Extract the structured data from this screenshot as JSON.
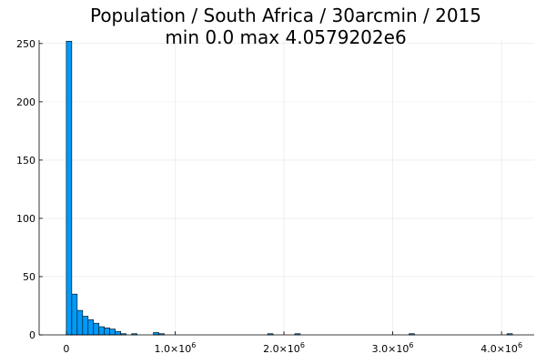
{
  "chart_data": {
    "type": "bar",
    "title": "Population / South Africa / 30arcmin / 2015",
    "subtitle": "min 0.0  max 4.0579202e6",
    "xlabel": "",
    "ylabel": "",
    "xlim": [
      -250000,
      4300000
    ],
    "ylim": [
      0,
      253
    ],
    "grid": true,
    "legend": "none",
    "bar_color": "#009af9",
    "bin_width": 50000,
    "bins": [
      {
        "x0": 0,
        "x1": 50000,
        "count": 252
      },
      {
        "x0": 50000,
        "x1": 100000,
        "count": 35
      },
      {
        "x0": 100000,
        "x1": 150000,
        "count": 21
      },
      {
        "x0": 150000,
        "x1": 200000,
        "count": 16
      },
      {
        "x0": 200000,
        "x1": 250000,
        "count": 13
      },
      {
        "x0": 250000,
        "x1": 300000,
        "count": 10
      },
      {
        "x0": 300000,
        "x1": 350000,
        "count": 7
      },
      {
        "x0": 350000,
        "x1": 400000,
        "count": 6
      },
      {
        "x0": 400000,
        "x1": 450000,
        "count": 5
      },
      {
        "x0": 450000,
        "x1": 500000,
        "count": 3
      },
      {
        "x0": 500000,
        "x1": 550000,
        "count": 1
      },
      {
        "x0": 600000,
        "x1": 650000,
        "count": 1
      },
      {
        "x0": 800000,
        "x1": 850000,
        "count": 2
      },
      {
        "x0": 850000,
        "x1": 900000,
        "count": 1
      },
      {
        "x0": 1850000,
        "x1": 1900000,
        "count": 1
      },
      {
        "x0": 2100000,
        "x1": 2150000,
        "count": 1
      },
      {
        "x0": 3150000,
        "x1": 3200000,
        "count": 1
      },
      {
        "x0": 4050000,
        "x1": 4100000,
        "count": 1
      }
    ],
    "yticks": [
      0,
      50,
      100,
      150,
      200,
      250
    ],
    "xticks": [
      {
        "value": 0,
        "label": "0",
        "sup": ""
      },
      {
        "value": 1000000,
        "label": "1.0×10",
        "sup": "6"
      },
      {
        "value": 2000000,
        "label": "2.0×10",
        "sup": "6"
      },
      {
        "value": 3000000,
        "label": "3.0×10",
        "sup": "6"
      },
      {
        "value": 4000000,
        "label": "4.0×10",
        "sup": "6"
      }
    ]
  }
}
